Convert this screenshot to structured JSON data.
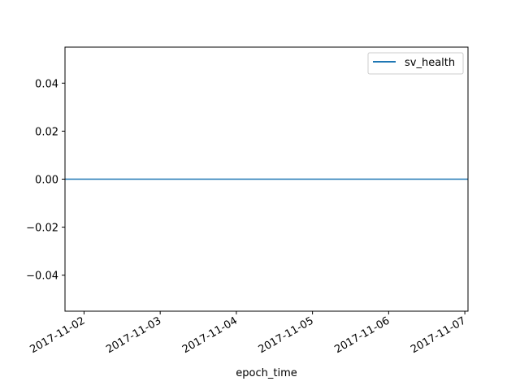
{
  "chart_data": {
    "type": "line",
    "title": "",
    "xlabel": "epoch_time",
    "ylabel": "",
    "x_ticks": [
      "2017-11-02",
      "2017-11-03",
      "2017-11-04",
      "2017-11-05",
      "2017-11-06",
      "2017-11-07"
    ],
    "xlim": [
      "2017-11-01T18:00",
      "2017-11-07T01:00"
    ],
    "ylim": [
      -0.055,
      0.055
    ],
    "y_ticks": [
      "−0.04",
      "−0.02",
      "0.00",
      "0.02",
      "0.04"
    ],
    "y_tick_values": [
      -0.04,
      -0.02,
      0,
      0.02,
      0.04
    ],
    "series": [
      {
        "name": "sv_health",
        "color": "#1f77b4",
        "x": [
          "2017-11-01T18:00",
          "2017-11-07T01:00"
        ],
        "values": [
          0,
          0
        ]
      }
    ],
    "legend": "upper-right",
    "grid": false
  }
}
